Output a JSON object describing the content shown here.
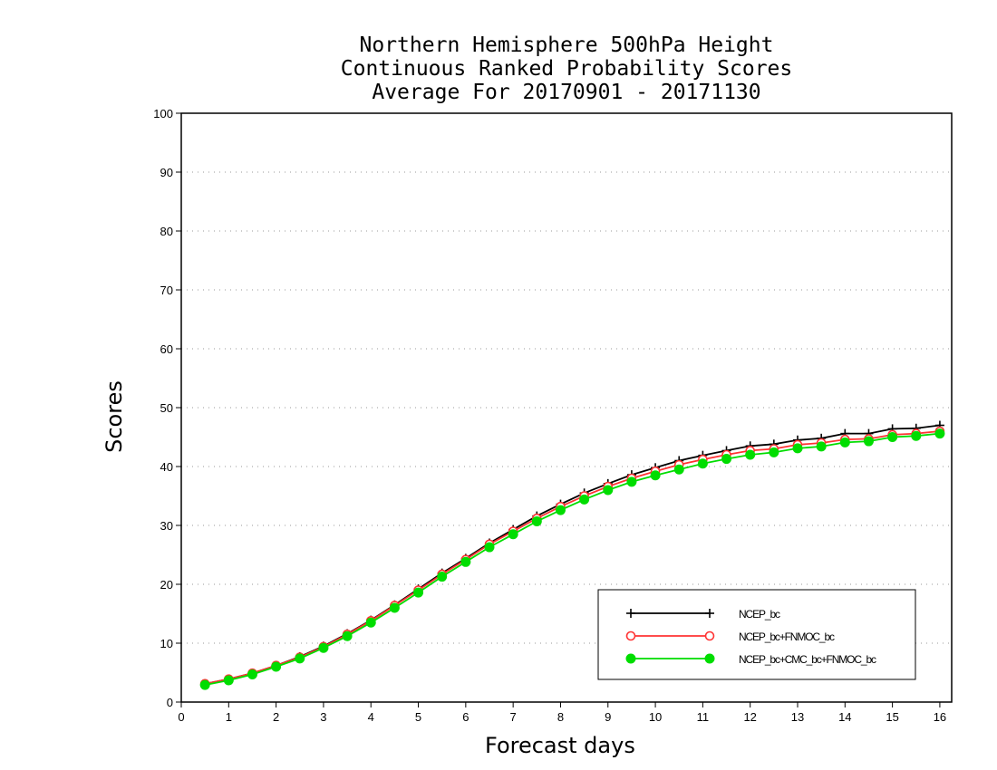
{
  "title": {
    "line1": "Northern Hemisphere 500hPa Height",
    "line2": "Continuous Ranked Probability Scores",
    "line3": "Average For 20170901 - 20171130"
  },
  "chart_data": {
    "type": "line",
    "xlabel": "Forecast days",
    "ylabel": "Scores",
    "xlim": [
      0,
      16.25
    ],
    "ylim": [
      0,
      100
    ],
    "x_ticks": [
      0,
      1,
      2,
      3,
      4,
      5,
      6,
      7,
      8,
      9,
      10,
      11,
      12,
      13,
      14,
      15,
      16
    ],
    "y_ticks": [
      0,
      10,
      20,
      30,
      40,
      50,
      60,
      70,
      80,
      90,
      100
    ],
    "grid": "horizontal dotted",
    "legend_position": "bottom-right",
    "x": [
      0.5,
      1,
      1.5,
      2,
      2.5,
      3,
      3.5,
      4,
      4.5,
      5,
      5.5,
      6,
      6.5,
      7,
      7.5,
      8,
      8.5,
      9,
      9.5,
      10,
      10.5,
      11,
      11.5,
      12,
      12.5,
      13,
      13.5,
      14,
      14.5,
      15,
      15.5,
      16
    ],
    "series": [
      {
        "name": "NCEP_bc",
        "color": "#000000",
        "marker": "plus",
        "values": [
          3.1,
          3.9,
          4.9,
          6.2,
          7.7,
          9.5,
          11.6,
          13.9,
          16.5,
          19.2,
          21.9,
          24.4,
          27.0,
          29.3,
          31.6,
          33.6,
          35.5,
          37.1,
          38.6,
          39.8,
          41.0,
          41.9,
          42.7,
          43.5,
          43.8,
          44.5,
          44.8,
          45.6,
          45.6,
          46.4,
          46.5,
          47.0
        ]
      },
      {
        "name": "NCEP_bc+FNMOC_bc",
        "color": "#ff3333",
        "marker": "open-circle",
        "values": [
          3.1,
          3.9,
          4.9,
          6.2,
          7.6,
          9.4,
          11.5,
          13.8,
          16.4,
          19.0,
          21.7,
          24.2,
          26.8,
          29.0,
          31.2,
          33.2,
          35.0,
          36.6,
          38.0,
          39.2,
          40.3,
          41.2,
          42.0,
          42.7,
          43.0,
          43.7,
          44.0,
          44.6,
          44.7,
          45.4,
          45.6,
          46.0
        ]
      },
      {
        "name": "NCEP_bc+CMC_bc+FNMOC_bc",
        "color": "#00dd00",
        "marker": "filled-circle",
        "values": [
          2.9,
          3.7,
          4.7,
          6.0,
          7.4,
          9.2,
          11.2,
          13.5,
          16.0,
          18.6,
          21.3,
          23.8,
          26.3,
          28.5,
          30.7,
          32.6,
          34.4,
          36.0,
          37.4,
          38.5,
          39.5,
          40.5,
          41.3,
          42.0,
          42.4,
          43.1,
          43.4,
          44.1,
          44.3,
          45.0,
          45.2,
          45.6
        ]
      }
    ]
  }
}
